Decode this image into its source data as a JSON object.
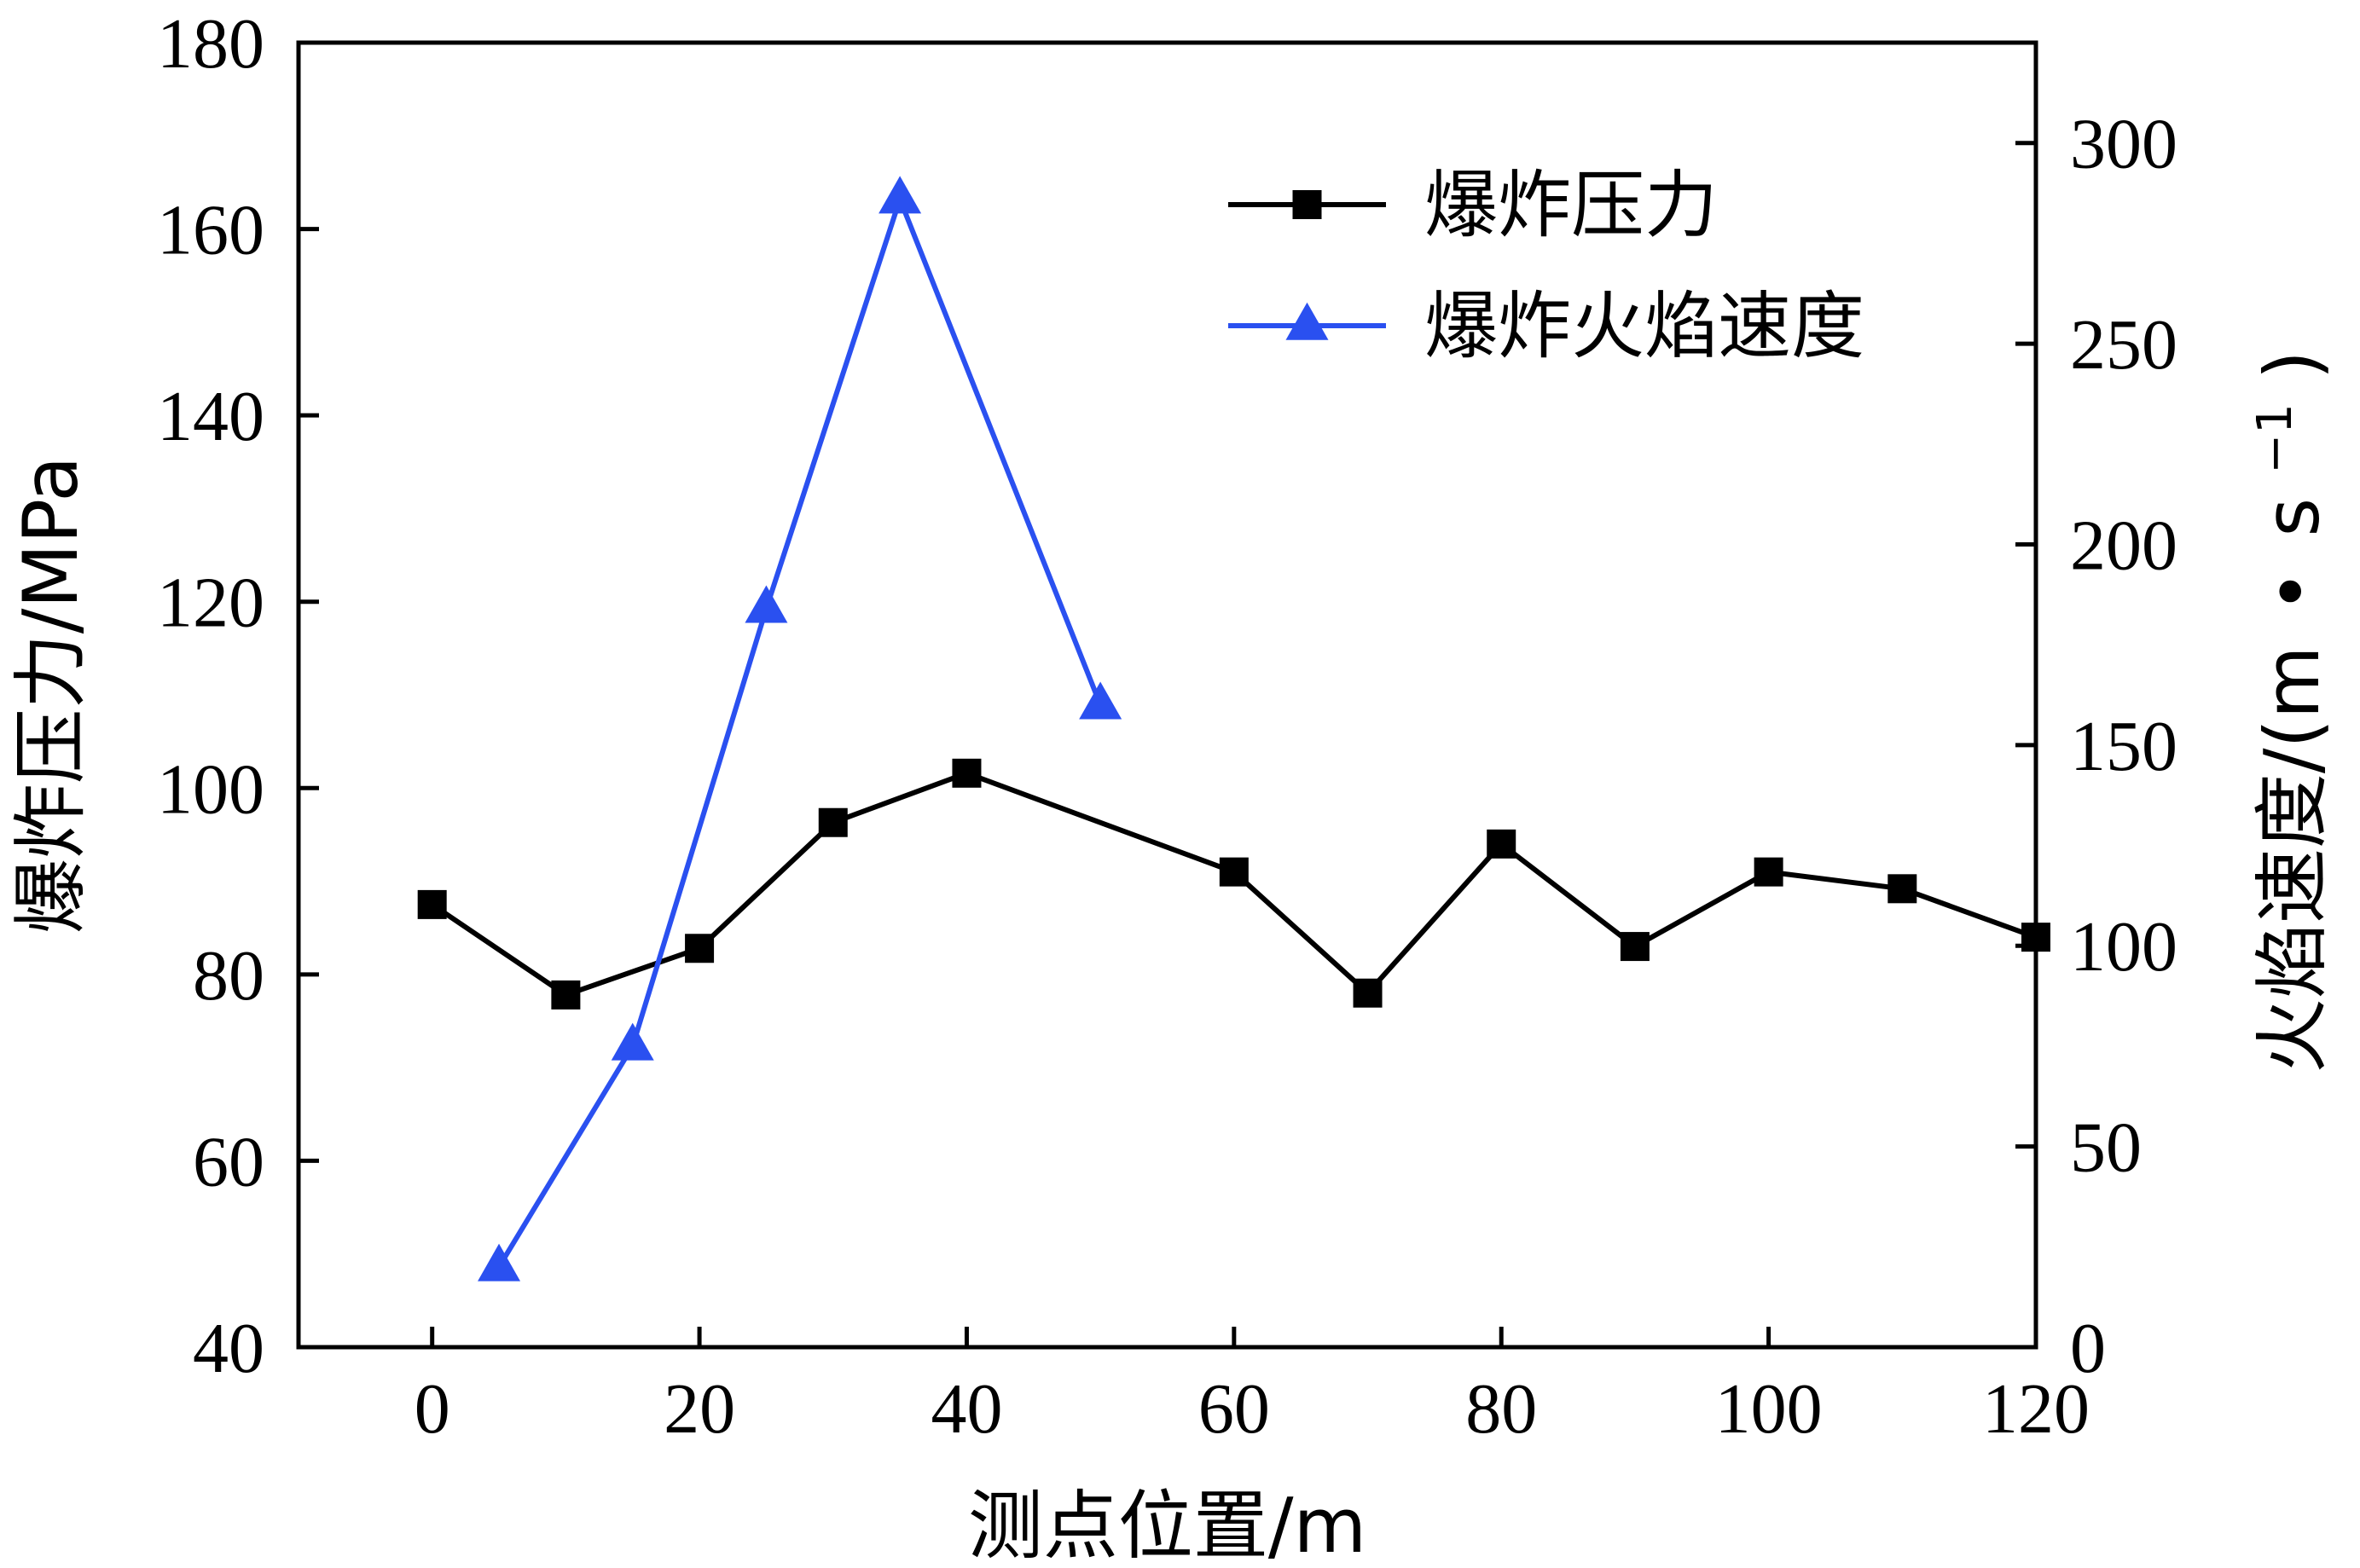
{
  "chart_data": {
    "type": "line",
    "xlabel": "测点位置/m",
    "ylabel_left": "爆炸压力/MPa",
    "ylabel_right_main": "火焰速度/(m",
    "ylabel_right_dot": "•",
    "ylabel_right_unit": "s",
    "ylabel_right_sup": "−1",
    "ylabel_right_close": ")",
    "xlim": [
      -10,
      120
    ],
    "ylim_left": [
      40,
      180
    ],
    "ylim_right": [
      0,
      325
    ],
    "x_ticks": [
      0,
      20,
      40,
      60,
      80,
      100,
      120
    ],
    "y_left_ticks": [
      40,
      60,
      80,
      100,
      120,
      140,
      160,
      180
    ],
    "y_right_ticks": [
      0,
      50,
      100,
      150,
      200,
      250,
      300
    ],
    "legend_position": "top-right",
    "series": [
      {
        "name": "爆炸压力",
        "axis": "left",
        "marker": "square",
        "color": "#000000",
        "x": [
          0,
          10,
          20,
          30,
          40,
          60,
          70,
          80,
          90,
          100,
          110,
          120
        ],
        "y": [
          87.5,
          77.8,
          82.8,
          96.3,
          101.6,
          91.0,
          78.0,
          94.0,
          83.0,
          91.0,
          89.2,
          84.0
        ]
      },
      {
        "name": "爆炸火焰速度",
        "axis": "right",
        "marker": "triangle",
        "color": "#2a50f0",
        "x": [
          5,
          15,
          25,
          35,
          50
        ],
        "y": [
          20,
          75,
          184,
          286,
          160
        ]
      }
    ]
  }
}
